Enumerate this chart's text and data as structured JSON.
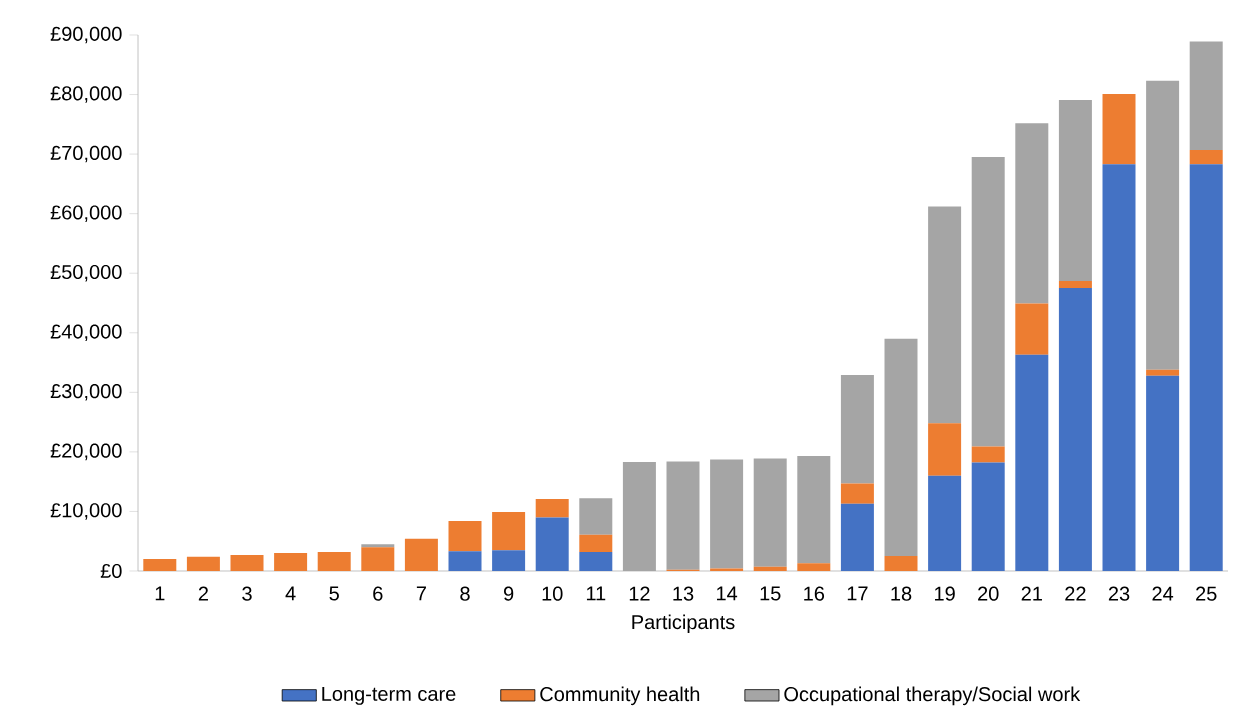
{
  "chart_data": {
    "type": "bar",
    "stacked": true,
    "xlabel": "Participants",
    "categories": [
      "1",
      "2",
      "3",
      "4",
      "5",
      "6",
      "7",
      "8",
      "9",
      "10",
      "11",
      "12",
      "13",
      "14",
      "15",
      "16",
      "17",
      "18",
      "19",
      "20",
      "21",
      "22",
      "23",
      "24",
      "25"
    ],
    "series": [
      {
        "name": "Long-term care",
        "color": "#4472c4",
        "values": [
          0,
          0,
          0,
          0,
          0,
          0,
          0,
          3300,
          3500,
          9000,
          3200,
          0,
          0,
          0,
          0,
          0,
          11300,
          0,
          16000,
          18200,
          36300,
          47500,
          68300,
          32800,
          68300
        ]
      },
      {
        "name": "Community health",
        "color": "#ed7d31",
        "values": [
          2000,
          2400,
          2700,
          3000,
          3200,
          4000,
          5400,
          5100,
          6400,
          3100,
          2900,
          0,
          200,
          400,
          700,
          1300,
          3400,
          2500,
          8800,
          2700,
          8600,
          1200,
          11800,
          1000,
          2400
        ]
      },
      {
        "name": "Occupational therapy/Social work",
        "color": "#a5a5a5",
        "values": [
          0,
          0,
          0,
          0,
          0,
          500,
          0,
          0,
          0,
          0,
          6100,
          18300,
          18200,
          18300,
          18200,
          18000,
          18200,
          36500,
          36400,
          48600,
          30300,
          30400,
          0,
          48500,
          18200
        ]
      }
    ],
    "ylim": [
      0,
      90000
    ],
    "yticks": [
      {
        "value": 0,
        "label": "£0"
      },
      {
        "value": 10000,
        "label": "£10,000"
      },
      {
        "value": 20000,
        "label": "£20,000"
      },
      {
        "value": 30000,
        "label": "£30,000"
      },
      {
        "value": 40000,
        "label": "£40,000"
      },
      {
        "value": 50000,
        "label": "£50,000"
      },
      {
        "value": 60000,
        "label": "£60,000"
      },
      {
        "value": 70000,
        "label": "£70,000"
      },
      {
        "value": 80000,
        "label": "£80,000"
      },
      {
        "value": 90000,
        "label": "£90,000"
      }
    ],
    "grid": false,
    "legend": "bottom"
  }
}
